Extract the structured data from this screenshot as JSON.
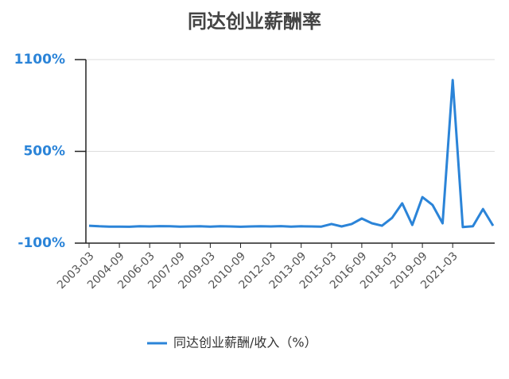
{
  "chart_data": {
    "type": "line",
    "title": "同达创业薪酬率",
    "categories": [
      "2003-03",
      null,
      null,
      "2004-09",
      null,
      null,
      "2006-03",
      null,
      null,
      "2007-09",
      null,
      null,
      "2009-03",
      null,
      null,
      "2010-09",
      null,
      null,
      "2012-03",
      null,
      null,
      "2013-09",
      null,
      null,
      "2015-03",
      null,
      null,
      "2016-09",
      null,
      null,
      "2018-03",
      null,
      null,
      "2019-09",
      null,
      null,
      "2021-03",
      null,
      null,
      null,
      null
    ],
    "series": [
      {
        "name": "同达创业薪酬/收入（%）",
        "color": "#2b84d8",
        "values": [
          14,
          10,
          8,
          8,
          7,
          10,
          9,
          11,
          10,
          8,
          9,
          10,
          8,
          10,
          9,
          7,
          9,
          10,
          9,
          11,
          8,
          10,
          9,
          8,
          25,
          9,
          25,
          61,
          30,
          14,
          65,
          160,
          19,
          201,
          150,
          30,
          966,
          5,
          10,
          123,
          14
        ]
      }
    ],
    "ylim": [
      -100,
      1100
    ],
    "yticks": [
      {
        "value": -100,
        "label": "-100%"
      },
      {
        "value": 500,
        "label": "500%"
      },
      {
        "value": 1100,
        "label": "1100%"
      }
    ],
    "grid": true
  }
}
